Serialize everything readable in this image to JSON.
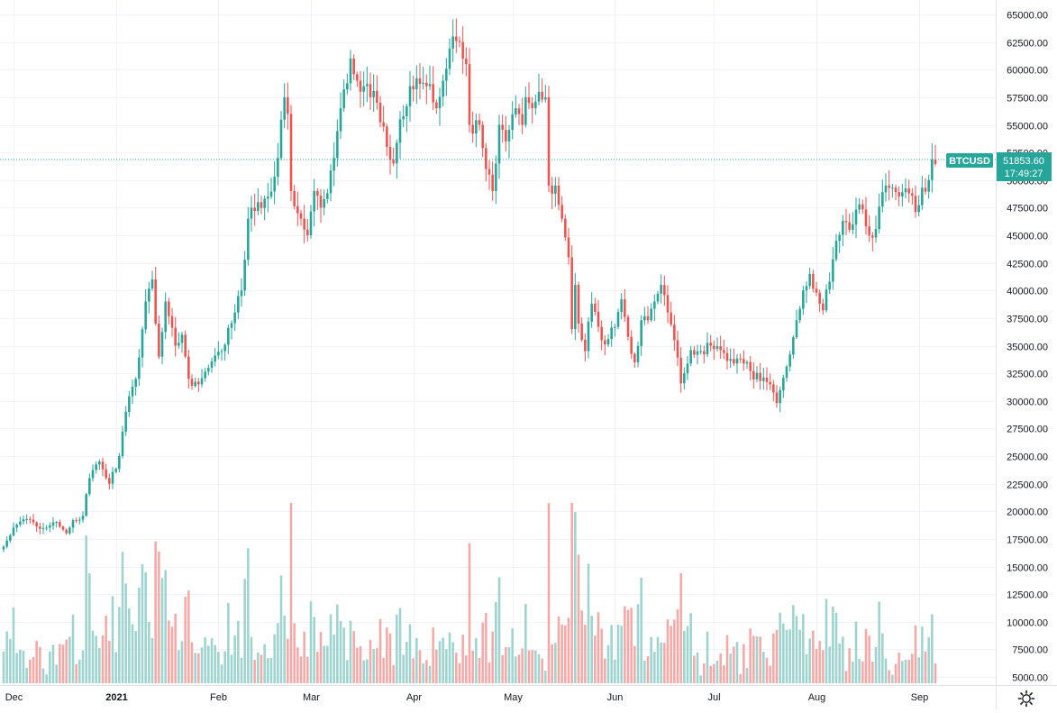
{
  "chart_data": {
    "type": "candlestick",
    "symbol": "BTCUSD",
    "last_price": "51853.60",
    "countdown": "17:49:27",
    "colors": {
      "up": "#26a69a",
      "down": "#ef5350",
      "up_volume": "#9ed4cf",
      "down_volume": "#f5a9a7",
      "price_line": "#26a69a",
      "grid": "#f0f3fa",
      "axis_text": "#131722"
    },
    "ylim": [
      5000,
      65000
    ],
    "y_ticks": [
      "65000.00",
      "62500.00",
      "60000.00",
      "57500.00",
      "55000.00",
      "52500.00",
      "50000.00",
      "47500.00",
      "45000.00",
      "42500.00",
      "40000.00",
      "37500.00",
      "35000.00",
      "32500.00",
      "30000.00",
      "27500.00",
      "25000.00",
      "22500.00",
      "20000.00",
      "17500.00",
      "15000.00",
      "12500.00",
      "10000.00",
      "7500.00",
      "5000.00"
    ],
    "x_ticks": [
      {
        "label": "Dec",
        "date": "2020-12-01"
      },
      {
        "label": "2021",
        "date": "2021-01-01"
      },
      {
        "label": "Feb",
        "date": "2021-02-01"
      },
      {
        "label": "Mar",
        "date": "2021-03-01"
      },
      {
        "label": "Apr",
        "date": "2021-04-01"
      },
      {
        "label": "May",
        "date": "2021-05-01"
      },
      {
        "label": "Jun",
        "date": "2021-06-01"
      },
      {
        "label": "Jul",
        "date": "2021-07-01"
      },
      {
        "label": "Aug",
        "date": "2021-08-01"
      },
      {
        "label": "Sep",
        "date": "2021-09-01"
      }
    ],
    "x_range": {
      "start": "2020-11-28",
      "end": "2021-09-06"
    },
    "close_waypoints": [
      [
        "2020-11-28",
        16800
      ],
      [
        "2020-12-02",
        18800
      ],
      [
        "2020-12-05",
        19300
      ],
      [
        "2020-12-10",
        18500
      ],
      [
        "2020-12-13",
        19000
      ],
      [
        "2020-12-17",
        18000
      ],
      [
        "2020-12-19",
        19200
      ],
      [
        "2020-12-22",
        19600
      ],
      [
        "2020-12-24",
        23000
      ],
      [
        "2020-12-27",
        24500
      ],
      [
        "2020-12-30",
        22500
      ],
      [
        "2021-01-02",
        25000
      ],
      [
        "2021-01-04",
        29000
      ],
      [
        "2021-01-07",
        32000
      ],
      [
        "2021-01-10",
        39000
      ],
      [
        "2021-01-12",
        41000
      ],
      [
        "2021-01-14",
        34000
      ],
      [
        "2021-01-16",
        39000
      ],
      [
        "2021-01-19",
        35000
      ],
      [
        "2021-01-21",
        36000
      ],
      [
        "2021-01-23",
        32000
      ],
      [
        "2021-01-26",
        31500
      ],
      [
        "2021-01-29",
        33000
      ],
      [
        "2021-02-02",
        34500
      ],
      [
        "2021-02-06",
        38000
      ],
      [
        "2021-02-08",
        40000
      ],
      [
        "2021-02-10",
        46500
      ],
      [
        "2021-02-13",
        48000
      ],
      [
        "2021-02-16",
        48500
      ],
      [
        "2021-02-19",
        52000
      ],
      [
        "2021-02-21",
        57500
      ],
      [
        "2021-02-22",
        56000
      ],
      [
        "2021-02-23",
        49000
      ],
      [
        "2021-02-25",
        47000
      ],
      [
        "2021-02-26",
        46500
      ],
      [
        "2021-02-28",
        45000
      ],
      [
        "2021-03-02",
        49000
      ],
      [
        "2021-03-04",
        47500
      ],
      [
        "2021-03-06",
        48800
      ],
      [
        "2021-03-08",
        52000
      ],
      [
        "2021-03-10",
        56500
      ],
      [
        "2021-03-13",
        61000
      ],
      [
        "2021-03-15",
        59000
      ],
      [
        "2021-03-17",
        58500
      ],
      [
        "2021-03-19",
        57500
      ],
      [
        "2021-03-21",
        57000
      ],
      [
        "2021-03-24",
        53000
      ],
      [
        "2021-03-26",
        51500
      ],
      [
        "2021-03-28",
        55500
      ],
      [
        "2021-03-31",
        58500
      ],
      [
        "2021-04-02",
        59200
      ],
      [
        "2021-04-05",
        58500
      ],
      [
        "2021-04-08",
        56500
      ],
      [
        "2021-04-10",
        59000
      ],
      [
        "2021-04-13",
        63000
      ],
      [
        "2021-04-15",
        62500
      ],
      [
        "2021-04-16",
        61000
      ],
      [
        "2021-04-17",
        60500
      ],
      [
        "2021-04-18",
        55000
      ],
      [
        "2021-04-21",
        55000
      ],
      [
        "2021-04-23",
        51000
      ],
      [
        "2021-04-25",
        49000
      ],
      [
        "2021-04-27",
        55000
      ],
      [
        "2021-04-29",
        53500
      ],
      [
        "2021-05-02",
        56500
      ],
      [
        "2021-05-04",
        55000
      ],
      [
        "2021-05-05",
        57500
      ],
      [
        "2021-05-07",
        56500
      ],
      [
        "2021-05-09",
        58000
      ],
      [
        "2021-05-11",
        57500
      ],
      [
        "2021-05-12",
        49500
      ],
      [
        "2021-05-14",
        49500
      ],
      [
        "2021-05-16",
        46500
      ],
      [
        "2021-05-18",
        43000
      ],
      [
        "2021-05-19",
        36500
      ],
      [
        "2021-05-20",
        40500
      ],
      [
        "2021-05-21",
        37000
      ],
      [
        "2021-05-23",
        34500
      ],
      [
        "2021-05-25",
        38800
      ],
      [
        "2021-05-28",
        35500
      ],
      [
        "2021-05-30",
        35600
      ],
      [
        "2021-06-01",
        36700
      ],
      [
        "2021-06-03",
        39200
      ],
      [
        "2021-06-05",
        35800
      ],
      [
        "2021-06-07",
        33500
      ],
      [
        "2021-06-09",
        37300
      ],
      [
        "2021-06-11",
        37300
      ],
      [
        "2021-06-13",
        39000
      ],
      [
        "2021-06-15",
        40500
      ],
      [
        "2021-06-17",
        38000
      ],
      [
        "2021-06-19",
        35500
      ],
      [
        "2021-06-21",
        31600
      ],
      [
        "2021-06-22",
        32500
      ],
      [
        "2021-06-24",
        34600
      ],
      [
        "2021-06-27",
        34500
      ],
      [
        "2021-06-30",
        35000
      ],
      [
        "2021-07-03",
        34600
      ],
      [
        "2021-07-06",
        33800
      ],
      [
        "2021-07-09",
        33800
      ],
      [
        "2021-07-12",
        32700
      ],
      [
        "2021-07-15",
        31800
      ],
      [
        "2021-07-18",
        31500
      ],
      [
        "2021-07-20",
        29800
      ],
      [
        "2021-07-22",
        32100
      ],
      [
        "2021-07-24",
        34200
      ],
      [
        "2021-07-26",
        37300
      ],
      [
        "2021-07-28",
        40000
      ],
      [
        "2021-07-30",
        41500
      ],
      [
        "2021-08-01",
        39800
      ],
      [
        "2021-08-03",
        38200
      ],
      [
        "2021-08-05",
        40800
      ],
      [
        "2021-08-07",
        44500
      ],
      [
        "2021-08-09",
        46300
      ],
      [
        "2021-08-11",
        45500
      ],
      [
        "2021-08-14",
        47800
      ],
      [
        "2021-08-16",
        45800
      ],
      [
        "2021-08-18",
        44800
      ],
      [
        "2021-08-21",
        48900
      ],
      [
        "2021-08-23",
        49300
      ],
      [
        "2021-08-25",
        48900
      ],
      [
        "2021-08-27",
        48900
      ],
      [
        "2021-08-29",
        48800
      ],
      [
        "2021-08-31",
        47100
      ],
      [
        "2021-09-02",
        49300
      ],
      [
        "2021-09-04",
        50000
      ],
      [
        "2021-09-05",
        51853.6
      ]
    ]
  },
  "icons": {
    "settings": "settings-gear-icon"
  }
}
